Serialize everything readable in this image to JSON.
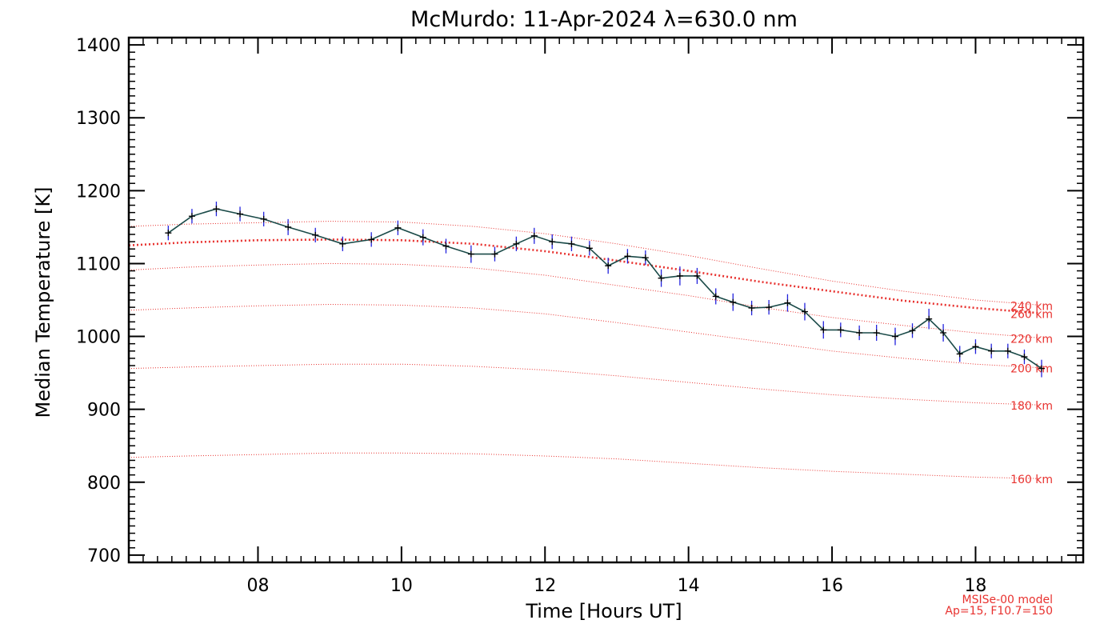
{
  "chart_data": {
    "type": "line",
    "title": "McMurdo: 11-Apr-2024 λ=630.0 nm",
    "xlabel": "Time [Hours UT]",
    "ylabel": "Median Temperature [K]",
    "xlim": [
      6.2,
      19.5
    ],
    "ylim": [
      690,
      1410
    ],
    "x_ticks": [
      8,
      10,
      12,
      14,
      16,
      18
    ],
    "x_tick_labels": [
      "08",
      "10",
      "12",
      "14",
      "16",
      "18"
    ],
    "y_ticks": [
      700,
      800,
      900,
      1000,
      1100,
      1200,
      1300,
      1400
    ],
    "y_tick_labels": [
      "700",
      "800",
      "900",
      "1000",
      "1100",
      "1200",
      "1300",
      "1400"
    ],
    "grid": false,
    "colors": {
      "measured_line": "#1a4a48",
      "error_bars": "#2222dd",
      "model_lines": "#e8322f"
    },
    "measured": {
      "x": [
        6.75,
        7.08,
        7.42,
        7.75,
        8.08,
        8.42,
        8.8,
        9.18,
        9.58,
        9.95,
        10.3,
        10.62,
        10.97,
        11.3,
        11.6,
        11.85,
        12.1,
        12.37,
        12.62,
        12.88,
        13.15,
        13.4,
        13.62,
        13.88,
        14.12,
        14.38,
        14.62,
        14.88,
        15.12,
        15.38,
        15.62,
        15.88,
        16.12,
        16.38,
        16.62,
        16.88,
        17.12,
        17.35,
        17.55,
        17.78,
        18.0,
        18.22,
        18.45,
        18.68,
        18.92
      ],
      "y": [
        1142,
        1165,
        1175,
        1168,
        1161,
        1150,
        1139,
        1127,
        1133,
        1149,
        1136,
        1124,
        1113,
        1113,
        1127,
        1138,
        1130,
        1127,
        1121,
        1097,
        1110,
        1108,
        1080,
        1083,
        1083,
        1055,
        1047,
        1039,
        1040,
        1046,
        1034,
        1009,
        1009,
        1005,
        1005,
        1000,
        1008,
        1024,
        1005,
        976,
        986,
        980,
        980,
        972,
        956
      ],
      "err": [
        10,
        10,
        10,
        10,
        10,
        11,
        10,
        10,
        10,
        10,
        11,
        10,
        12,
        10,
        10,
        11,
        10,
        10,
        10,
        11,
        10,
        10,
        12,
        13,
        11,
        11,
        12,
        10,
        10,
        12,
        12,
        12,
        10,
        10,
        11,
        12,
        10,
        14,
        12,
        11,
        10,
        10,
        10,
        10,
        12
      ]
    },
    "model": {
      "label": "MSISe-00 model",
      "params": "Ap=15, F10.7=150",
      "series": [
        {
          "name": "260 km",
          "emphasis": true,
          "x": [
            6.2,
            7,
            8,
            9,
            10,
            11,
            12,
            13,
            14,
            15,
            16,
            17,
            18,
            18.9
          ],
          "y": [
            1125,
            1129,
            1132,
            1133,
            1132,
            1127,
            1117,
            1104,
            1090,
            1075,
            1062,
            1049,
            1039,
            1032
          ]
        },
        {
          "name": "240 km",
          "x": [
            6.2,
            7,
            8,
            9,
            10,
            11,
            12,
            13,
            14,
            15,
            16,
            17,
            18,
            18.9
          ],
          "y": [
            1151,
            1154,
            1156,
            1158,
            1157,
            1151,
            1141,
            1127,
            1111,
            1093,
            1076,
            1062,
            1050,
            1043
          ]
        },
        {
          "name": "220 km",
          "x": [
            6.2,
            7,
            8,
            9,
            10,
            11,
            12,
            13,
            14,
            15,
            16,
            17,
            18,
            18.9
          ],
          "y": [
            1091,
            1095,
            1098,
            1100,
            1099,
            1094,
            1084,
            1070,
            1056,
            1040,
            1026,
            1015,
            1005,
            998
          ]
        },
        {
          "name": "200 km",
          "x": [
            6.2,
            7,
            8,
            9,
            10,
            11,
            12,
            13,
            14,
            15,
            16,
            17,
            18,
            18.9
          ],
          "y": [
            1036,
            1039,
            1042,
            1044,
            1043,
            1039,
            1031,
            1019,
            1006,
            993,
            980,
            970,
            962,
            957
          ]
        },
        {
          "name": "180 km",
          "x": [
            6.2,
            7,
            8,
            9,
            10,
            11,
            12,
            13,
            14,
            15,
            16,
            17,
            18,
            18.9
          ],
          "y": [
            956,
            958,
            960,
            962,
            962,
            959,
            954,
            946,
            937,
            928,
            920,
            914,
            909,
            906
          ]
        },
        {
          "name": "160 km",
          "x": [
            6.2,
            7,
            8,
            9,
            10,
            11,
            12,
            13,
            14,
            15,
            16,
            17,
            18,
            18.9
          ],
          "y": [
            834,
            836,
            838,
            840,
            840,
            839,
            836,
            832,
            826,
            820,
            815,
            811,
            807,
            805
          ]
        }
      ]
    }
  }
}
